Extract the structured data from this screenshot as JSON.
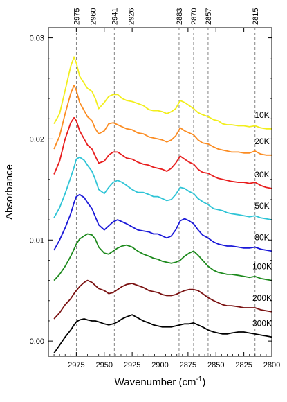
{
  "chart_data": {
    "type": "line",
    "title": "",
    "xlabel": "Wavenumber (cm",
    "xlabel_sup": "-1",
    "xlabel_close": ")",
    "ylabel": "Absorbance",
    "x_axis_reversed": true,
    "xlim": [
      3000,
      2800
    ],
    "ylim": [
      -0.0015,
      0.031
    ],
    "x_ticks": [
      {
        "value": 2975,
        "label": "2975"
      },
      {
        "value": 2950,
        "label": "2950"
      },
      {
        "value": 2925,
        "label": "2925"
      },
      {
        "value": 2900,
        "label": "2900"
      },
      {
        "value": 2875,
        "label": "2875"
      },
      {
        "value": 2850,
        "label": "2850"
      },
      {
        "value": 2825,
        "label": "2825"
      },
      {
        "value": 2800,
        "label": "2800"
      }
    ],
    "y_ticks": [
      {
        "value": 0.0,
        "label": "0.00"
      },
      {
        "value": 0.01,
        "label": "0.01"
      },
      {
        "value": 0.02,
        "label": "0.02"
      },
      {
        "value": 0.03,
        "label": "0.03"
      }
    ],
    "grid": false,
    "reference_lines": [
      {
        "x": 2975,
        "label": "2975"
      },
      {
        "x": 2960,
        "label": "2960"
      },
      {
        "x": 2941,
        "label": "2941"
      },
      {
        "x": 2926,
        "label": "2926"
      },
      {
        "x": 2883,
        "label": "2883"
      },
      {
        "x": 2870,
        "label": "2870"
      },
      {
        "x": 2857,
        "label": "2857"
      },
      {
        "x": 2815,
        "label": "2815"
      }
    ],
    "x": [
      2995,
      2990,
      2985,
      2980,
      2977,
      2975,
      2972,
      2968,
      2965,
      2961,
      2958,
      2955,
      2950,
      2946,
      2942,
      2938,
      2934,
      2930,
      2925,
      2920,
      2915,
      2910,
      2906,
      2902,
      2898,
      2894,
      2890,
      2886,
      2882,
      2878,
      2874,
      2870,
      2866,
      2862,
      2857,
      2852,
      2848,
      2844,
      2840,
      2836,
      2830,
      2825,
      2820,
      2815,
      2810,
      2805,
      2800
    ],
    "series": [
      {
        "name": "10K",
        "color": "#f2ee1c",
        "values": [
          0.0215,
          0.0225,
          0.0248,
          0.0272,
          0.0281,
          0.0275,
          0.0262,
          0.0255,
          0.025,
          0.0247,
          0.024,
          0.023,
          0.0236,
          0.0242,
          0.0244,
          0.0244,
          0.024,
          0.0238,
          0.0237,
          0.0235,
          0.0233,
          0.0229,
          0.0228,
          0.0228,
          0.0227,
          0.0225,
          0.0227,
          0.023,
          0.0238,
          0.0236,
          0.0233,
          0.023,
          0.0226,
          0.0224,
          0.0222,
          0.0219,
          0.0218,
          0.0215,
          0.0214,
          0.0214,
          0.0213,
          0.0213,
          0.0212,
          0.0213,
          0.0211,
          0.021,
          0.021
        ]
      },
      {
        "name": "20K",
        "color": "#fb8c22",
        "values": [
          0.019,
          0.0203,
          0.0225,
          0.0245,
          0.0253,
          0.0248,
          0.0236,
          0.0228,
          0.0222,
          0.0218,
          0.021,
          0.0205,
          0.0208,
          0.0215,
          0.0216,
          0.0214,
          0.0212,
          0.021,
          0.0209,
          0.0206,
          0.0205,
          0.0202,
          0.0201,
          0.02,
          0.0199,
          0.0197,
          0.0199,
          0.0203,
          0.0211,
          0.0208,
          0.0206,
          0.0204,
          0.0199,
          0.0196,
          0.0195,
          0.0192,
          0.019,
          0.0189,
          0.0188,
          0.0187,
          0.0187,
          0.0186,
          0.0186,
          0.0188,
          0.0185,
          0.0184,
          0.0184
        ]
      },
      {
        "name": "30K",
        "color": "#e81d1d",
        "values": [
          0.0165,
          0.0178,
          0.02,
          0.0216,
          0.0221,
          0.0218,
          0.0208,
          0.02,
          0.0194,
          0.019,
          0.0183,
          0.0176,
          0.0178,
          0.0184,
          0.0187,
          0.0187,
          0.0184,
          0.0181,
          0.018,
          0.0177,
          0.0175,
          0.0174,
          0.0172,
          0.0171,
          0.017,
          0.0168,
          0.0171,
          0.0176,
          0.0183,
          0.018,
          0.0177,
          0.0175,
          0.017,
          0.0167,
          0.0166,
          0.0163,
          0.0161,
          0.016,
          0.0159,
          0.0158,
          0.0157,
          0.0157,
          0.0156,
          0.0157,
          0.0154,
          0.0152,
          0.0151
        ]
      },
      {
        "name": "50K",
        "color": "#2ec4d6",
        "values": [
          0.0122,
          0.0132,
          0.0146,
          0.0162,
          0.0172,
          0.018,
          0.0182,
          0.0179,
          0.0174,
          0.0168,
          0.016,
          0.015,
          0.0146,
          0.0152,
          0.0157,
          0.0159,
          0.0157,
          0.0154,
          0.015,
          0.0147,
          0.0147,
          0.0145,
          0.0143,
          0.0143,
          0.0141,
          0.0139,
          0.014,
          0.0145,
          0.0152,
          0.0151,
          0.0148,
          0.0146,
          0.0141,
          0.0138,
          0.0135,
          0.0131,
          0.013,
          0.0129,
          0.0127,
          0.0126,
          0.0125,
          0.0124,
          0.0123,
          0.0124,
          0.0122,
          0.0121,
          0.012
        ]
      },
      {
        "name": "80K",
        "color": "#1a18d8",
        "values": [
          0.009,
          0.01,
          0.0112,
          0.0126,
          0.0137,
          0.0143,
          0.0145,
          0.0142,
          0.0137,
          0.0131,
          0.0123,
          0.0115,
          0.011,
          0.0114,
          0.0118,
          0.012,
          0.0118,
          0.0116,
          0.0113,
          0.011,
          0.0109,
          0.0108,
          0.0106,
          0.0106,
          0.0104,
          0.0102,
          0.0104,
          0.011,
          0.0119,
          0.0121,
          0.0119,
          0.0116,
          0.011,
          0.0105,
          0.0102,
          0.0098,
          0.0096,
          0.0095,
          0.0094,
          0.0094,
          0.0093,
          0.0092,
          0.0092,
          0.0093,
          0.0091,
          0.009,
          0.0089
        ]
      },
      {
        "name": "100K",
        "color": "#1d8a1d",
        "values": [
          0.006,
          0.0066,
          0.0074,
          0.0084,
          0.0091,
          0.0096,
          0.0101,
          0.0104,
          0.0106,
          0.0105,
          0.0101,
          0.0093,
          0.0087,
          0.0086,
          0.0089,
          0.0092,
          0.0094,
          0.0095,
          0.0093,
          0.0089,
          0.0086,
          0.0084,
          0.0082,
          0.0081,
          0.0079,
          0.0078,
          0.0077,
          0.0078,
          0.008,
          0.0084,
          0.0087,
          0.0089,
          0.0085,
          0.008,
          0.0074,
          0.007,
          0.0068,
          0.0067,
          0.0066,
          0.0066,
          0.0065,
          0.0064,
          0.0063,
          0.0064,
          0.0062,
          0.0061,
          0.006
        ]
      },
      {
        "name": "200K",
        "color": "#7a1111",
        "values": [
          0.0022,
          0.0028,
          0.0036,
          0.0042,
          0.0047,
          0.005,
          0.0054,
          0.0058,
          0.006,
          0.0058,
          0.0055,
          0.0052,
          0.005,
          0.0047,
          0.0048,
          0.0051,
          0.0054,
          0.0056,
          0.0057,
          0.0055,
          0.0053,
          0.005,
          0.0049,
          0.0048,
          0.0046,
          0.0045,
          0.0045,
          0.0046,
          0.0048,
          0.005,
          0.0051,
          0.0051,
          0.005,
          0.0047,
          0.0043,
          0.004,
          0.0038,
          0.0036,
          0.0035,
          0.0035,
          0.0034,
          0.0033,
          0.0033,
          0.0033,
          0.0031,
          0.003,
          0.0029
        ]
      },
      {
        "name": "300K",
        "color": "#000000",
        "values": [
          -0.0012,
          -0.0004,
          0.0004,
          0.0011,
          0.0016,
          0.0019,
          0.0021,
          0.0022,
          0.0021,
          0.002,
          0.002,
          0.0019,
          0.0017,
          0.0016,
          0.0017,
          0.0019,
          0.0022,
          0.0024,
          0.0026,
          0.0023,
          0.002,
          0.0018,
          0.0016,
          0.0015,
          0.0014,
          0.0014,
          0.0014,
          0.0015,
          0.0016,
          0.0017,
          0.0017,
          0.0018,
          0.0016,
          0.0014,
          0.0011,
          0.0009,
          0.0008,
          0.0007,
          0.0007,
          0.0008,
          0.0009,
          0.0009,
          0.0008,
          0.0007,
          0.0006,
          0.0005,
          0.0004
        ]
      }
    ]
  }
}
